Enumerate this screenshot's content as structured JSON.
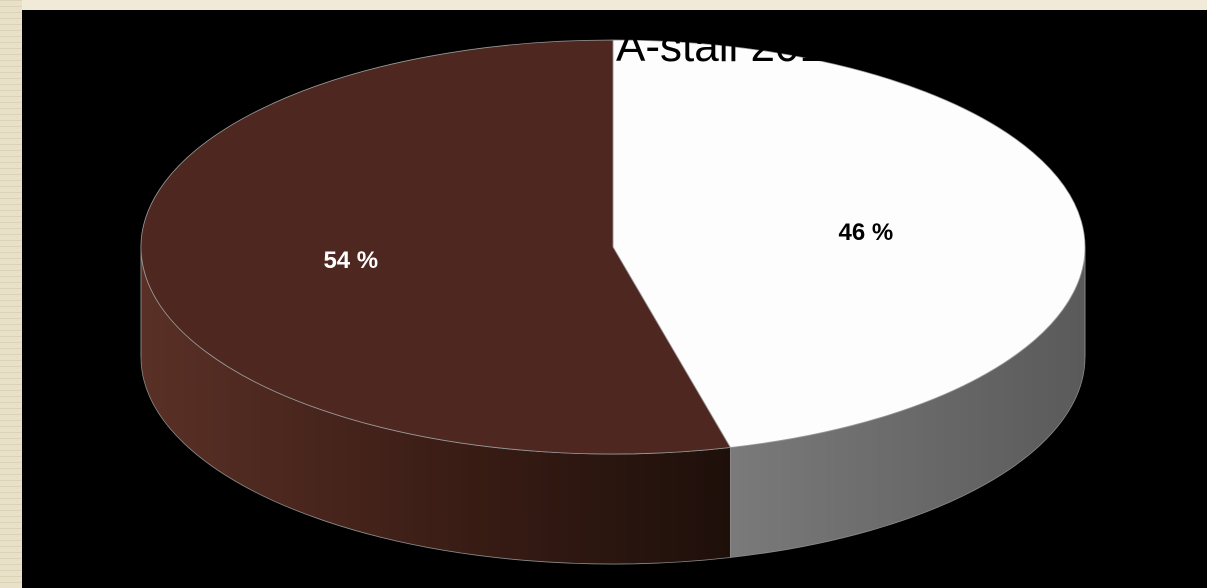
{
  "chart_data": {
    "type": "pie",
    "title": "A-stall 2017",
    "labels": [
      "",
      ""
    ],
    "values": [
      46,
      54
    ],
    "data_labels": [
      "46 %",
      "54 %"
    ],
    "colors": [
      "#fdfdfd",
      "#4e2820"
    ],
    "side_colors": [
      "#6a6a6a",
      "#321810"
    ],
    "style": "3d",
    "background": "#000000",
    "legend": "none"
  }
}
